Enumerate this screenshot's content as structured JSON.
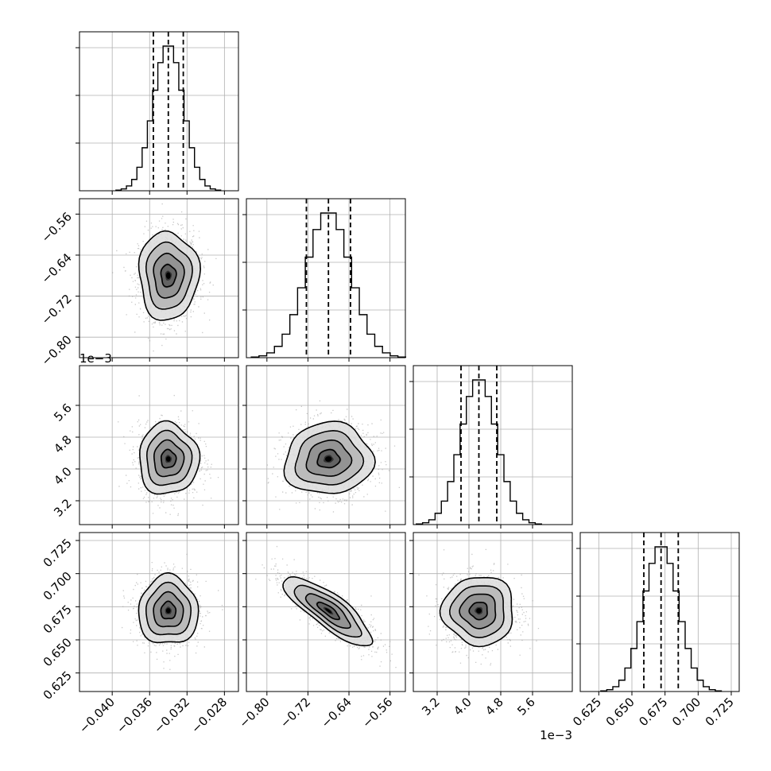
{
  "chart_data": {
    "type": "corner",
    "grid": true,
    "parameters": [
      {
        "range": [
          -0.0435,
          -0.0265
        ],
        "ticks": [
          -0.04,
          -0.036,
          -0.032,
          -0.028
        ],
        "tick_labels": [
          "−0.040",
          "−0.036",
          "−0.032",
          "−0.028"
        ],
        "median": -0.034,
        "q16": -0.0356,
        "q84": -0.0324,
        "sigma": 0.0016,
        "offset": ""
      },
      {
        "range": [
          -0.84,
          -0.53
        ],
        "ticks": [
          -0.8,
          -0.72,
          -0.64,
          -0.56
        ],
        "tick_labels": [
          "−0.80",
          "−0.72",
          "−0.64",
          "−0.56"
        ],
        "median": -0.68,
        "q16": -0.723,
        "q84": -0.637,
        "sigma": 0.043,
        "offset": ""
      },
      {
        "range": [
          2.6,
          6.6
        ],
        "ticks": [
          3.2,
          4.0,
          4.8,
          5.6
        ],
        "tick_labels": [
          "3.2",
          "4.0",
          "4.8",
          "5.6"
        ],
        "median": 4.25,
        "q16": 3.8,
        "q84": 4.7,
        "sigma": 0.45,
        "offset": "1e−3"
      },
      {
        "range": [
          0.611,
          0.731
        ],
        "ticks": [
          0.625,
          0.65,
          0.675,
          0.7,
          0.725
        ],
        "tick_labels": [
          "0.625",
          "0.650",
          "0.675",
          "0.700",
          "0.725"
        ],
        "median": 0.672,
        "q16": 0.659,
        "q84": 0.685,
        "sigma": 0.013,
        "offset": ""
      }
    ],
    "correlations": {
      "1-0": 0.0,
      "2-0": 0.0,
      "2-1": 0.05,
      "3-0": 0.0,
      "3-1": -0.82,
      "3-2": 0.0
    },
    "histogram_bins": 20,
    "contour_levels_sigma": [
      0.5,
      1.0,
      1.5,
      2.0
    ]
  },
  "colors": {
    "line": "#000000",
    "grid": "#b0b0b0",
    "scatter": "#9a9a9a"
  }
}
